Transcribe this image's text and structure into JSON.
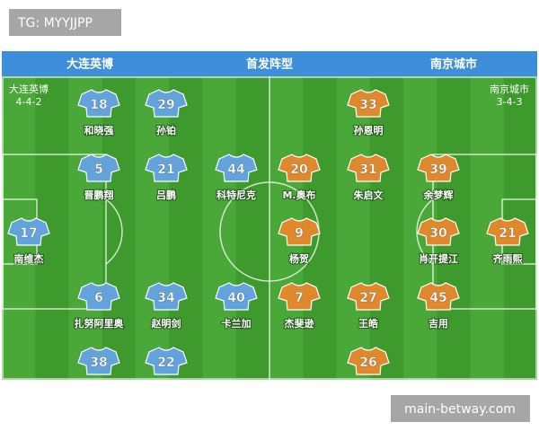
{
  "badge": "TG: MYYJJPP",
  "header": {
    "home": "大连英博",
    "title": "首发阵型",
    "away": "南京城市"
  },
  "teams": [
    {
      "name": "大连英博",
      "formation": "4-4-2",
      "color": "#62a3dc",
      "players": [
        {
          "number": 18,
          "name": "和晓强"
        },
        {
          "number": 29,
          "name": "孙铂"
        },
        {
          "number": 5,
          "name": "晋鹏翔"
        },
        {
          "number": 21,
          "name": "吕鹏"
        },
        {
          "number": 44,
          "name": "科特尼克"
        },
        {
          "number": 17,
          "name": "南维杰"
        },
        {
          "number": 6,
          "name": "扎努阿里奥"
        },
        {
          "number": 34,
          "name": "赵明剑"
        },
        {
          "number": 40,
          "name": "卡兰加"
        },
        {
          "number": 38
        },
        {
          "number": 22
        }
      ]
    },
    {
      "name": "南京城市",
      "formation": "3-4-3",
      "color": "#e0892c",
      "players": [
        {
          "number": 33,
          "name": "孙恩明"
        },
        {
          "number": 20,
          "name": "M.奥布"
        },
        {
          "number": 31,
          "name": "朱启文"
        },
        {
          "number": 39,
          "name": "余梦辉"
        },
        {
          "number": 9,
          "name": "杨贺"
        },
        {
          "number": 30,
          "name": "肖开提江"
        },
        {
          "number": 21,
          "name": "齐雨熙"
        },
        {
          "number": 7,
          "name": "杰斐逊"
        },
        {
          "number": 27,
          "name": "王皓"
        },
        {
          "number": 45,
          "name": "吉用"
        },
        {
          "number": 26
        }
      ]
    }
  ],
  "footer": "main-betway.com"
}
